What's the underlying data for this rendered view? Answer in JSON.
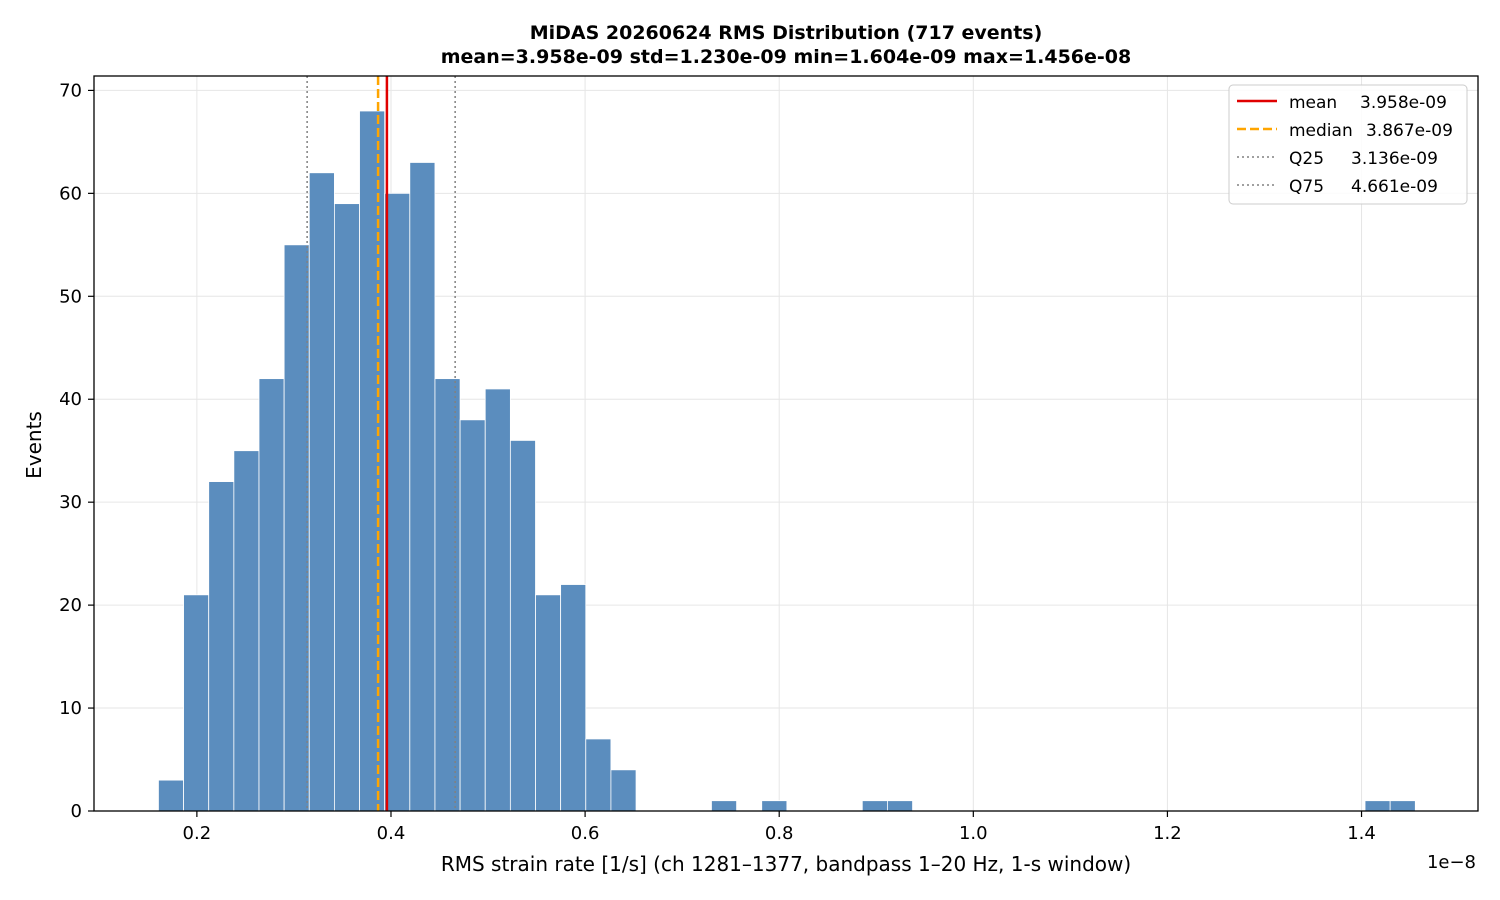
{
  "chart_data": {
    "type": "bar",
    "title": "MiDAS 20260624  RMS Distribution  (717 events)",
    "subtitle": "mean=3.958e-09  std=1.230e-09  min=1.604e-09  max=1.456e-08",
    "xlabel": "RMS strain rate [1/s]  (ch 1281–1377, bandpass 1–20 Hz, 1-s window)",
    "ylabel": "Events",
    "x_offset_label": "1e−8",
    "xlim": [
      0.094,
      1.52
    ],
    "ylim": [
      0,
      71.4
    ],
    "x_ticks": [
      0.2,
      0.4,
      0.6,
      0.8,
      1.0,
      1.2,
      1.4
    ],
    "x_tick_labels": [
      "0.2",
      "0.4",
      "0.6",
      "0.8",
      "1.0",
      "1.2",
      "1.4"
    ],
    "y_ticks": [
      0,
      10,
      20,
      30,
      40,
      50,
      60,
      70
    ],
    "y_tick_labels": [
      "0",
      "10",
      "20",
      "30",
      "40",
      "50",
      "60",
      "70"
    ],
    "grid": true,
    "bin_start": 0.1604,
    "bin_width": 0.0259,
    "values": [
      3,
      21,
      32,
      35,
      42,
      55,
      62,
      59,
      68,
      60,
      63,
      42,
      38,
      41,
      36,
      21,
      22,
      7,
      4,
      0,
      0,
      0,
      1,
      0,
      1,
      0,
      0,
      0,
      1,
      1,
      0,
      0,
      0,
      0,
      0,
      0,
      0,
      0,
      0,
      0,
      0,
      0,
      0,
      0,
      0,
      0,
      0,
      0,
      1,
      1
    ],
    "bar_color": "#5b8dbe",
    "vlines": [
      {
        "name": "mean",
        "value_text": "3.958e-09",
        "x": 0.3958,
        "color": "#e00000",
        "style": "solid"
      },
      {
        "name": "median",
        "value_text": "3.867e-09",
        "x": 0.3867,
        "color": "#ffa500",
        "style": "dashed"
      },
      {
        "name": "Q25",
        "value_text": "3.136e-09",
        "x": 0.3136,
        "color": "#808080",
        "style": "dotted"
      },
      {
        "name": "Q75",
        "value_text": "4.661e-09",
        "x": 0.4661,
        "color": "#808080",
        "style": "dotted"
      }
    ],
    "legend_position": "top-right"
  }
}
